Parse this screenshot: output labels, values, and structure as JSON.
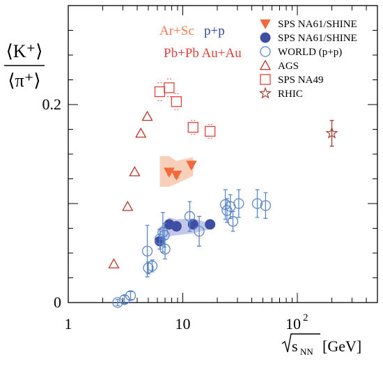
{
  "colors": {
    "na61_pp": "#3e4fa3",
    "na61_pp_band": "#b9bde6",
    "na61_arsc": "#f26a3c",
    "na61_arsc_band": "#f7c8ad",
    "world_pp": "#5b86c7",
    "ags": "#b8322a",
    "na49": "#e0403a",
    "rhic": "#a33a2e",
    "label_arsc": "#f07a52",
    "label_pp": "#2f4aa0",
    "label_pbpb": "#e0403a"
  },
  "chart_data": {
    "type": "scatter",
    "xscale": "log",
    "xlim": [
      1,
      500
    ],
    "ylim": [
      0,
      0.3
    ],
    "ylabel": "⟨K⁺⟩ / ⟨π⁺⟩",
    "xlabel": "√sNN [GeV]",
    "ylabel_num": "⟨K⁺⟩",
    "ylabel_den": "⟨π⁺⟩",
    "xlabel_base": "s",
    "xlabel_sub": "NN",
    "xlabel_unit": "[GeV]",
    "xticks": [
      {
        "value": 1,
        "label": "1"
      },
      {
        "value": 10,
        "label": "10"
      },
      {
        "value": 100,
        "label": "10",
        "exp": "2"
      }
    ],
    "yticks": [
      {
        "value": 0,
        "label": "0"
      },
      {
        "value": 0.2,
        "label": "0.2"
      }
    ],
    "system_labels": {
      "arsc": "Ar+Sc",
      "pp": "p+p",
      "pbpb": "Pb+Pb Au+Au"
    },
    "legend": [
      {
        "key": "na61_arsc",
        "marker": "triangle-down-filled",
        "label": "SPS NA61/SHINE"
      },
      {
        "key": "na61_pp",
        "marker": "circle-filled",
        "label": "SPS NA61/SHINE"
      },
      {
        "key": "world_pp",
        "marker": "circle-open",
        "label": "WORLD (p+p)"
      },
      {
        "key": "ags",
        "marker": "triangle-up-open",
        "label": "AGS"
      },
      {
        "key": "na49",
        "marker": "square-open",
        "label": "SPS NA49"
      },
      {
        "key": "rhic",
        "marker": "star-open",
        "label": "RHIC"
      }
    ],
    "series": [
      {
        "key": "na61_arsc",
        "marker": "triangle-down-filled",
        "x": [
          7.6,
          8.8,
          11.9
        ],
        "y": [
          0.132,
          0.129,
          0.139
        ],
        "err": [
          0.003,
          0.003,
          0.003
        ]
      },
      {
        "key": "na61_pp",
        "marker": "circle-filled",
        "x": [
          6.3,
          7.6,
          8.8,
          12.3,
          17.3
        ],
        "y": [
          0.062,
          0.079,
          0.077,
          0.079,
          0.079
        ],
        "err": [
          0.004,
          0.004,
          0.004,
          0.004,
          0.004
        ]
      },
      {
        "key": "world_pp",
        "marker": "circle-open",
        "x": [
          2.7,
          3.1,
          3.5,
          4.9,
          5.0,
          5.4,
          6.3,
          6.7,
          6.9,
          7.0,
          11.5,
          13.9,
          23.5,
          24.3,
          26.0,
          27.4,
          30.8,
          44.7,
          52.8
        ],
        "y": [
          0.0,
          0.003,
          0.007,
          0.052,
          0.035,
          0.037,
          0.064,
          0.071,
          0.068,
          0.054,
          0.087,
          0.072,
          0.099,
          0.093,
          0.097,
          0.082,
          0.1,
          0.1,
          0.098
        ],
        "err": [
          0.003,
          0.004,
          0.004,
          0.026,
          0.006,
          0.006,
          0.01,
          0.02,
          0.012,
          0.01,
          0.015,
          0.015,
          0.015,
          0.012,
          0.012,
          0.01,
          0.014,
          0.014,
          0.013
        ]
      },
      {
        "key": "ags",
        "marker": "triangle-up-open",
        "x": [
          2.5,
          3.3,
          3.8,
          4.3,
          4.9
        ],
        "y": [
          0.039,
          0.097,
          0.132,
          0.171,
          0.188
        ],
        "err": [
          0.0,
          0.0,
          0.0,
          0.0,
          0.0
        ]
      },
      {
        "key": "na49",
        "marker": "square-open",
        "x": [
          6.3,
          7.6,
          8.8,
          12.3,
          17.3
        ],
        "y": [
          0.213,
          0.217,
          0.203,
          0.177,
          0.173
        ],
        "err": [
          0.009,
          0.009,
          0.008,
          0.007,
          0.007
        ]
      },
      {
        "key": "rhic",
        "marker": "star-open",
        "x": [
          200
        ],
        "y": [
          0.171
        ],
        "err": [
          0.013
        ]
      }
    ],
    "bands": [
      {
        "key": "na61_arsc",
        "x": [
          6.3,
          7.6,
          8.8,
          12.3
        ],
        "upper": [
          0.148,
          0.148,
          0.143,
          0.147
        ],
        "lower": [
          0.117,
          0.117,
          0.12,
          0.128
        ]
      },
      {
        "key": "na61_pp",
        "x": [
          6.3,
          7.6,
          8.8,
          12.3,
          17.3
        ],
        "upper": [
          0.076,
          0.086,
          0.084,
          0.085,
          0.08
        ],
        "lower": [
          0.06,
          0.067,
          0.068,
          0.07,
          0.074
        ]
      }
    ]
  }
}
